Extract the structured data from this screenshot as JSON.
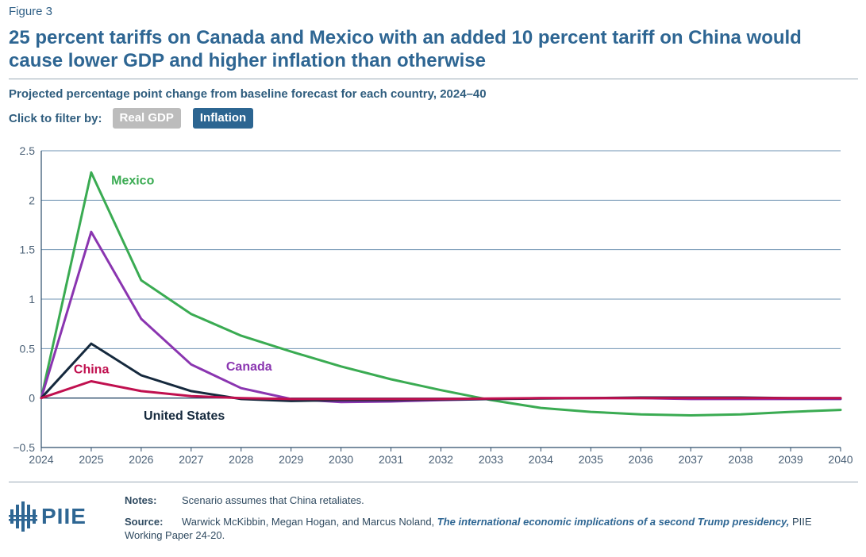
{
  "header": {
    "figure_label": "Figure 3",
    "title": "25 percent tariffs on Canada and Mexico with an added 10 percent tariff on China would cause lower GDP and higher inflation than otherwise",
    "subtitle": "Projected percentage point change from baseline forecast for each country, 2024–40"
  },
  "filter": {
    "label": "Click to filter by:",
    "options": [
      {
        "label": "Real GDP",
        "active": false
      },
      {
        "label": "Inflation",
        "active": true
      }
    ]
  },
  "chart_data": {
    "type": "line",
    "x": [
      2024,
      2025,
      2026,
      2027,
      2028,
      2029,
      2030,
      2031,
      2032,
      2033,
      2034,
      2035,
      2036,
      2037,
      2038,
      2039,
      2040
    ],
    "xlim": [
      2024,
      2040
    ],
    "ylim": [
      -0.5,
      2.5
    ],
    "yticks": [
      -0.5,
      0,
      0.5,
      1,
      1.5,
      2,
      2.5
    ],
    "ytick_labels": [
      "−0.5",
      "0",
      "0.5",
      "1",
      "1.5",
      "2",
      "2.5"
    ],
    "grid": true,
    "series": [
      {
        "name": "Mexico",
        "color": "#3aab52",
        "values": [
          0,
          2.28,
          1.19,
          0.85,
          0.63,
          0.47,
          0.32,
          0.19,
          0.08,
          -0.02,
          -0.1,
          -0.14,
          -0.165,
          -0.175,
          -0.165,
          -0.14,
          -0.12
        ]
      },
      {
        "name": "Canada",
        "color": "#8a35b0",
        "values": [
          0,
          1.68,
          0.8,
          0.34,
          0.1,
          -0.01,
          -0.04,
          -0.035,
          -0.02,
          -0.01,
          0.0,
          0.0,
          0.0,
          -0.01,
          -0.01,
          -0.01,
          -0.01
        ]
      },
      {
        "name": "United States",
        "color": "#15293d",
        "values": [
          0,
          0.55,
          0.23,
          0.07,
          -0.01,
          -0.03,
          -0.02,
          -0.02,
          -0.015,
          -0.01,
          -0.005,
          0.0,
          0.005,
          0.005,
          0.005,
          0.0,
          0.0
        ]
      },
      {
        "name": "China",
        "color": "#c0104f",
        "values": [
          0,
          0.17,
          0.07,
          0.02,
          0.0,
          -0.01,
          -0.01,
          -0.01,
          -0.01,
          -0.005,
          0.0,
          0.0,
          0.0,
          0.0,
          0.0,
          0.0,
          0.0
        ]
      }
    ],
    "labels": [
      {
        "series": "Mexico",
        "text": "Mexico",
        "x": 2025.4,
        "y": 2.16
      },
      {
        "series": "Canada",
        "text": "Canada",
        "x": 2027.7,
        "y": 0.28
      },
      {
        "series": "China",
        "text": "China",
        "x": 2024.65,
        "y": 0.25
      },
      {
        "series": "United States",
        "text": "United States",
        "x": 2026.05,
        "y": -0.22
      }
    ]
  },
  "footer": {
    "logo_text": "PIIE",
    "notes_label": "Notes:",
    "notes_text": "Scenario assumes that China retaliates.",
    "source_label": "Source:",
    "source_authors": "Warwick McKibbin, Megan Hogan, and Marcus Noland,",
    "source_publication": "The international economic implications of a second Trump presidency,",
    "source_series": "PIIE Working Paper 24-20."
  }
}
